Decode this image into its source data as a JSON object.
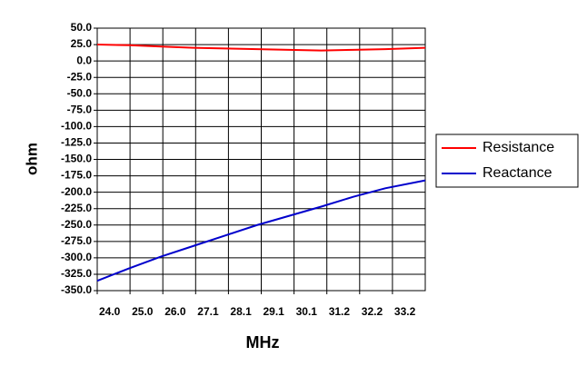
{
  "chart_data": {
    "type": "line",
    "x_label": "MHz",
    "y_label": "ohm",
    "x": [
      24.0,
      25.0,
      26.0,
      27.0,
      28.0,
      29.0,
      30.0,
      31.0,
      32.0,
      33.0,
      34.25
    ],
    "series": [
      {
        "name": "Resistance",
        "color": "#ff0000",
        "values": [
          25,
          24,
          22,
          20,
          19,
          18,
          17,
          16,
          17,
          18,
          20
        ]
      },
      {
        "name": "Reactance",
        "color": "#0000cc",
        "values": [
          -335,
          -316,
          -298,
          -282,
          -266,
          -250,
          -236,
          -222,
          -207,
          -194,
          -182
        ]
      }
    ],
    "xlim": [
      24,
      34.25
    ],
    "xticks": [
      {
        "value": 24,
        "label": "24.0"
      },
      {
        "value": 25.025,
        "label": "25.0"
      },
      {
        "value": 26.05,
        "label": "26.0"
      },
      {
        "value": 27.075,
        "label": "27.1"
      },
      {
        "value": 28.1,
        "label": "28.1"
      },
      {
        "value": 29.125,
        "label": "29.1"
      },
      {
        "value": 30.15,
        "label": "30.1"
      },
      {
        "value": 31.175,
        "label": "31.2"
      },
      {
        "value": 32.2,
        "label": "32.2"
      },
      {
        "value": 33.225,
        "label": "33.2"
      }
    ],
    "ylim": [
      -350,
      50
    ],
    "yticks": [
      {
        "value": 50,
        "label": "50.0"
      },
      {
        "value": 25,
        "label": "25.0"
      },
      {
        "value": 0,
        "label": "0.0"
      },
      {
        "value": -25,
        "label": "-25.0"
      },
      {
        "value": -50,
        "label": "-50.0"
      },
      {
        "value": -75,
        "label": "-75.0"
      },
      {
        "value": -100,
        "label": "-100.0"
      },
      {
        "value": -125,
        "label": "-125.0"
      },
      {
        "value": -150,
        "label": "-150.0"
      },
      {
        "value": -175,
        "label": "-175.0"
      },
      {
        "value": -200,
        "label": "-200.0"
      },
      {
        "value": -225,
        "label": "-225.0"
      },
      {
        "value": -250,
        "label": "-250.0"
      },
      {
        "value": -275,
        "label": "-275.0"
      },
      {
        "value": -300,
        "label": "-300.0"
      },
      {
        "value": -325,
        "label": "-325.0"
      },
      {
        "value": -350,
        "label": "-350.0"
      }
    ],
    "grid": true,
    "legend": "right"
  }
}
